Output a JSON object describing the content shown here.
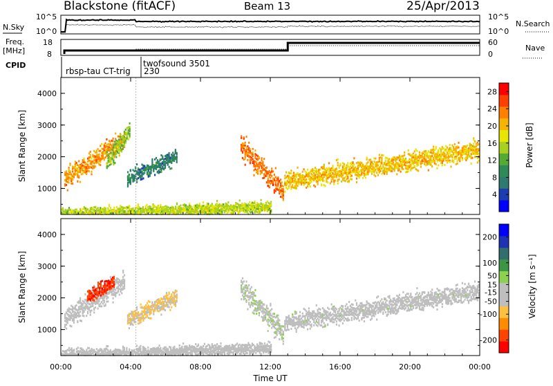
{
  "header": {
    "title": "Blackstone (fitACF)",
    "beam": "Beam 13",
    "date": "25/Apr/2013"
  },
  "top_panels": {
    "nsky_label": "N.Sky",
    "nsky_ticks": [
      "10^5",
      "10^0"
    ],
    "nsearch_label": "N.Search",
    "nsearch_ticks": [
      "10^5",
      "10^0"
    ],
    "freq_label_1": "Freq.",
    "freq_label_2": "[MHz]",
    "freq_ticks": [
      "18",
      "8"
    ],
    "nave_label": "Nave",
    "nave_ticks": [
      "60",
      "0"
    ],
    "cpid_label": "CPID",
    "cpid_segments": [
      {
        "label": "rbsp-tau CT-trig",
        "start_hour": 0.0
      },
      {
        "label": "twofsound 3501",
        "start_hour": 4.3
      },
      {
        "label": "230",
        "start_hour": 4.3
      }
    ]
  },
  "chart_data": [
    {
      "type": "heatmap",
      "title": "",
      "xlabel": "Time UT",
      "ylabel": "Slant Range [km]",
      "xlim_hours": [
        0,
        24
      ],
      "ylim_km": [
        180,
        4500
      ],
      "x_ticks": [
        "00:00",
        "04:00",
        "08:00",
        "12:00",
        "16:00",
        "20:00",
        "00:00"
      ],
      "x_tick_hours": [
        0,
        4,
        8,
        12,
        16,
        20,
        24
      ],
      "y_ticks": [
        "4000",
        "3000",
        "2000",
        "1000"
      ],
      "y_tick_values": [
        4000,
        3000,
        2000,
        1000
      ],
      "colorbar": {
        "label": "Power [dB]",
        "ticks": [
          "28",
          "24",
          "20",
          "16",
          "12",
          "8",
          "4"
        ],
        "tick_values": [
          28,
          24,
          20,
          16,
          12,
          8,
          4
        ],
        "range": [
          0,
          30
        ],
        "colors": [
          "#0000ff",
          "#1c3db0",
          "#2f7a6f",
          "#2e8b57",
          "#55aa33",
          "#a8d020",
          "#e6e600",
          "#f5b400",
          "#ff8000",
          "#ff4000",
          "#ff0000"
        ]
      },
      "features": [
        {
          "name": "early band",
          "start_hour": 0.2,
          "end_hour": 3.6,
          "range_start_km": 1300,
          "range_end_km": 2500,
          "power_db": 22
        },
        {
          "name": "early arc",
          "start_hour": 2.6,
          "end_hour": 3.9,
          "range_start_km": 1800,
          "range_end_km": 2800,
          "power_db": 14
        },
        {
          "name": "mid patch",
          "start_hour": 3.8,
          "end_hour": 6.6,
          "range_start_km": 1300,
          "range_end_km": 2000,
          "power_db": 8
        },
        {
          "name": "afternoon arc",
          "start_hour": 10.3,
          "end_hour": 12.7,
          "range_start_km": 2300,
          "range_end_km": 900,
          "power_db": 24
        },
        {
          "name": "late band",
          "start_hour": 12.8,
          "end_hour": 23.9,
          "range_start_km": 1200,
          "range_end_km": 2200,
          "power_db": 20
        },
        {
          "name": "near range",
          "start_hour": 0.0,
          "end_hour": 12.0,
          "range_start_km": 180,
          "range_end_km": 400,
          "power_db": 16
        }
      ]
    },
    {
      "type": "heatmap",
      "title": "",
      "xlabel": "Time UT",
      "ylabel": "Slant Range [km]",
      "xlim_hours": [
        0,
        24
      ],
      "ylim_km": [
        180,
        4500
      ],
      "x_ticks": [
        "00:00",
        "04:00",
        "08:00",
        "12:00",
        "16:00",
        "20:00",
        "00:00"
      ],
      "x_tick_hours": [
        0,
        4,
        8,
        12,
        16,
        20,
        24
      ],
      "y_ticks": [
        "4000",
        "3000",
        "2000",
        "1000"
      ],
      "y_tick_values": [
        4000,
        3000,
        2000,
        1000
      ],
      "colorbar": {
        "label": "Velocity [m s⁻¹]",
        "ticks": [
          "200",
          "100",
          "50",
          "15",
          "-15",
          "-50",
          "-100",
          "-200"
        ],
        "tick_values": [
          200,
          100,
          50,
          15,
          -15,
          -50,
          -100,
          -200
        ],
        "range": [
          -250,
          250
        ],
        "colors": [
          "#ff0000",
          "#ff4400",
          "#ff8c00",
          "#ffc040",
          "#bebebe",
          "#bebebe",
          "#8cd250",
          "#3c9646",
          "#326e6e",
          "#1e32b4",
          "#0000ff"
        ]
      },
      "features": [
        {
          "name": "early band",
          "start_hour": 0.2,
          "end_hour": 3.6,
          "range_start_km": 1300,
          "range_end_km": 2500,
          "velocity": -15
        },
        {
          "name": "early red patch",
          "start_hour": 1.5,
          "end_hour": 3.0,
          "range_start_km": 2000,
          "range_end_km": 2500,
          "velocity": -200
        },
        {
          "name": "mid patch",
          "start_hour": 3.8,
          "end_hour": 6.6,
          "range_start_km": 1300,
          "range_end_km": 2000,
          "velocity": -70
        },
        {
          "name": "afternoon arc",
          "start_hour": 10.3,
          "end_hour": 12.7,
          "range_start_km": 2300,
          "range_end_km": 900,
          "velocity": 15
        },
        {
          "name": "late band",
          "start_hour": 12.8,
          "end_hour": 23.9,
          "range_start_km": 1200,
          "range_end_km": 2200,
          "velocity": 0
        },
        {
          "name": "near range",
          "start_hour": 0.0,
          "end_hour": 12.0,
          "range_start_km": 180,
          "range_end_km": 400,
          "velocity": -30
        }
      ]
    }
  ]
}
